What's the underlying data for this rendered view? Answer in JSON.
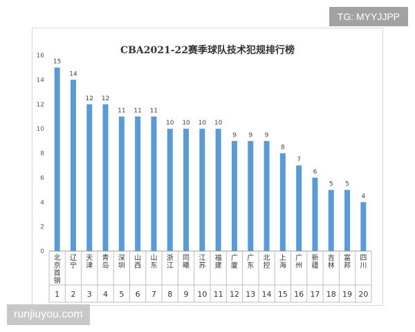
{
  "chart_data": {
    "type": "bar",
    "title": "CBA2021-22赛季球队技术犯规排行榜",
    "xlabel": "",
    "ylabel": "",
    "ylim": [
      0,
      16
    ],
    "yticks": [
      0,
      2,
      4,
      6,
      8,
      10,
      12,
      14,
      16
    ],
    "grid": false,
    "legend": "none",
    "bar_color": "#5b9bd5",
    "categories": [
      "北京首钢",
      "辽宁",
      "天津",
      "青岛",
      "深圳",
      "山西",
      "山东",
      "浙江",
      "同曦",
      "江苏",
      "福建",
      "广厦",
      "广东",
      "北控",
      "上海",
      "广州",
      "新疆",
      "吉林",
      "富邦",
      "四川"
    ],
    "ranks": [
      "1",
      "2",
      "3",
      "4",
      "5",
      "6",
      "7",
      "8",
      "9",
      "10",
      "11",
      "12",
      "13",
      "14",
      "15",
      "16",
      "17",
      "18",
      "19",
      "20"
    ],
    "values": [
      15,
      14,
      12,
      12,
      11,
      11,
      11,
      10,
      10,
      10,
      10,
      9,
      9,
      9,
      8,
      7,
      6,
      5,
      5,
      4
    ]
  },
  "badge_text": "TG: MYYJJPP",
  "watermark_text": "runjiuyou.com"
}
